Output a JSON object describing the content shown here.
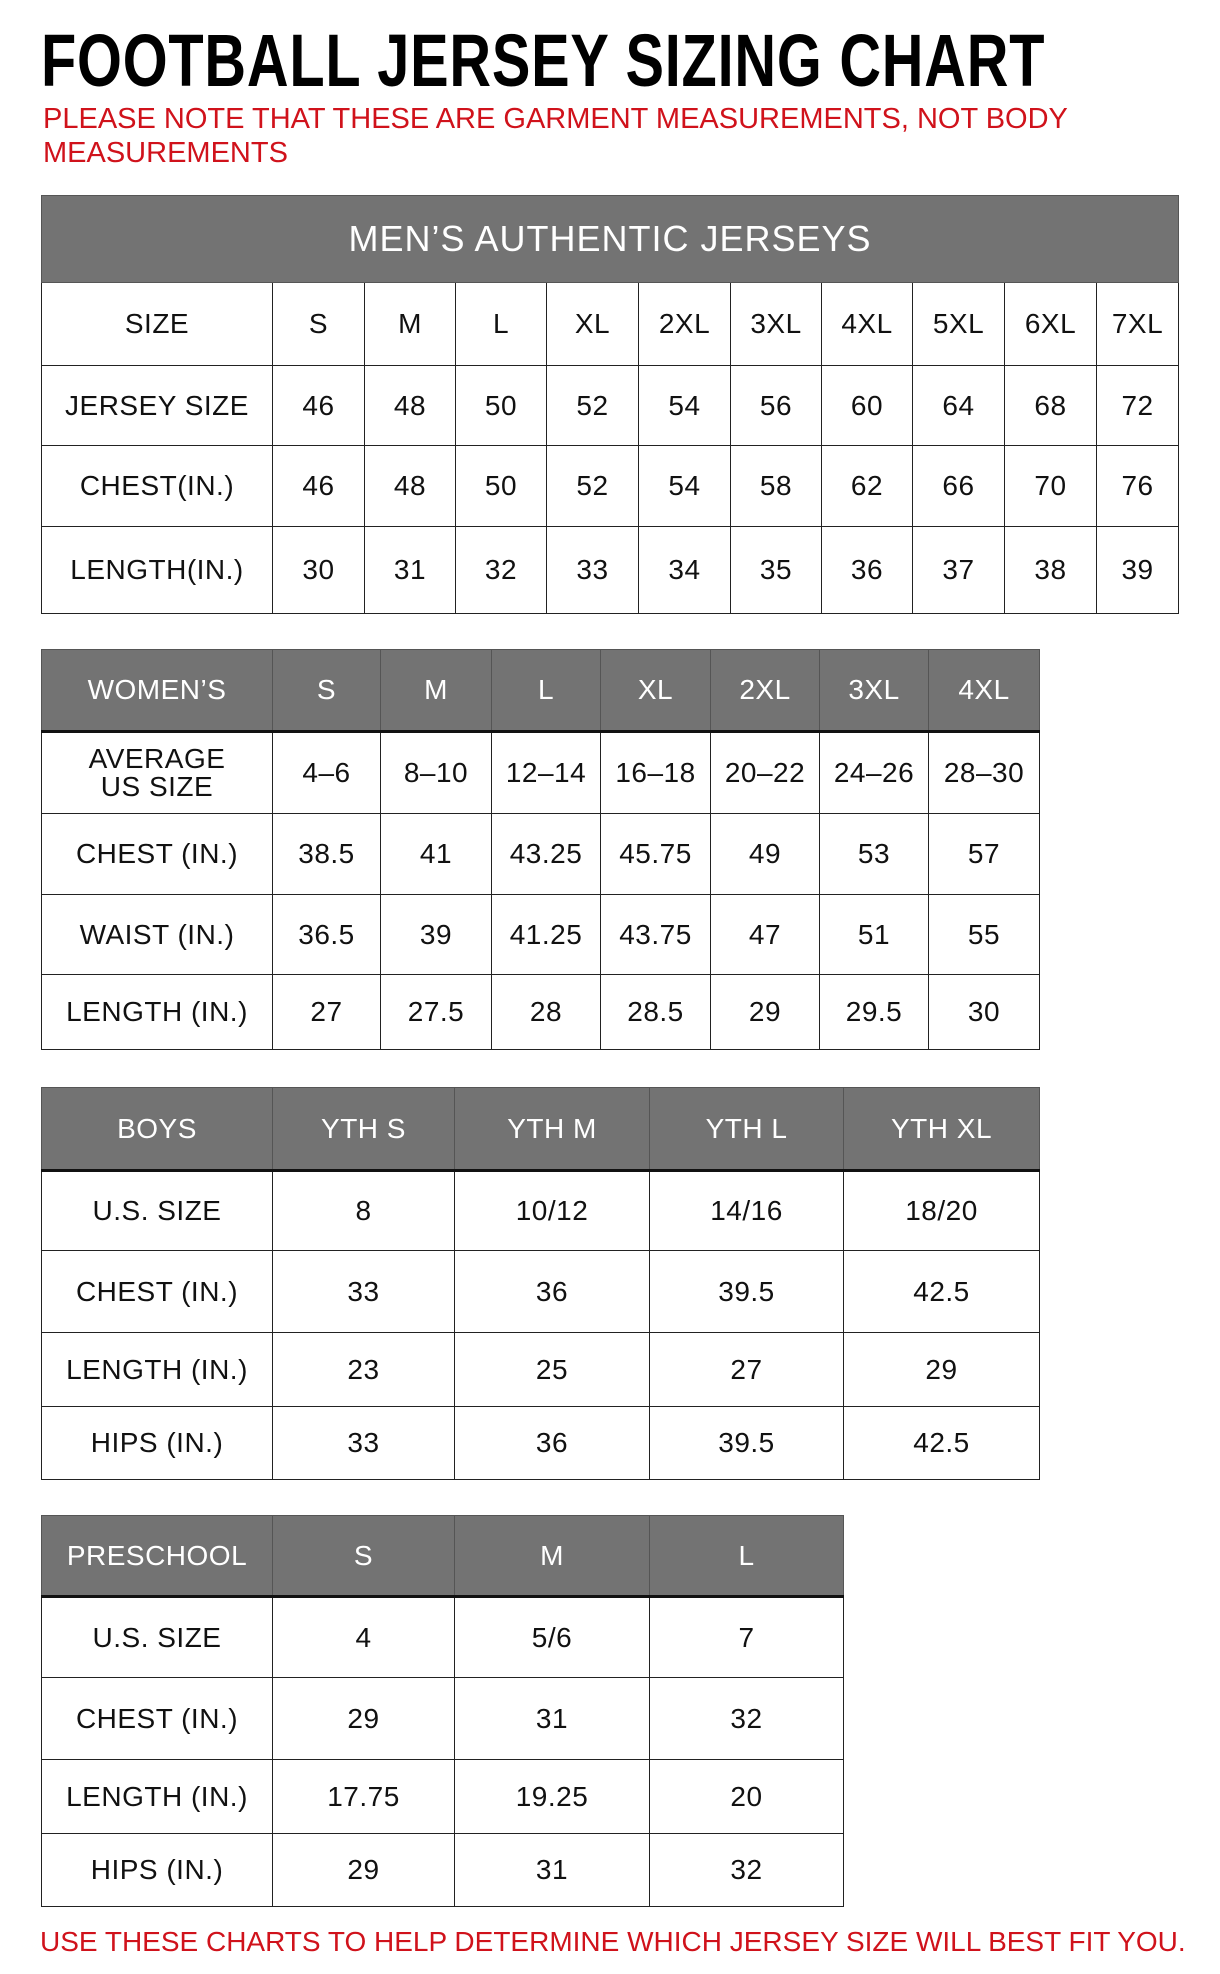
{
  "title": "FOOTBALL JERSEY SIZING CHART",
  "note": "PLEASE NOTE THAT THESE ARE GARMENT MEASUREMENTS, NOT BODY MEASUREMENTS",
  "footer": "USE THESE CHARTS TO HELP DETERMINE WHICH JERSEY SIZE WILL BEST FIT YOU.",
  "colors": {
    "header_gray": "#737373",
    "note_red": "#d0121b"
  },
  "tables": [
    {
      "caption": "MEN’S AUTHENTIC JERSEYS",
      "header": [
        "SIZE",
        "S",
        "M",
        "L",
        "XL",
        "2XL",
        "3XL",
        "4XL",
        "5XL",
        "6XL",
        "7XL"
      ],
      "header_style": "white",
      "rows": [
        [
          "JERSEY SIZE",
          "46",
          "48",
          "50",
          "52",
          "54",
          "56",
          "60",
          "64",
          "68",
          "72"
        ],
        [
          "CHEST(IN.)",
          "46",
          "48",
          "50",
          "52",
          "54",
          "58",
          "62",
          "66",
          "70",
          "76"
        ],
        [
          "LENGTH(IN.)",
          "30",
          "31",
          "32",
          "33",
          "34",
          "35",
          "36",
          "37",
          "38",
          "39"
        ]
      ]
    },
    {
      "header": [
        "WOMEN’S",
        "S",
        "M",
        "L",
        "XL",
        "2XL",
        "3XL",
        "4XL"
      ],
      "header_style": "gray",
      "rows": [
        [
          "AVERAGE\nUS SIZE",
          "4–6",
          "8–10",
          "12–14",
          "16–18",
          "20–22",
          "24–26",
          "28–30"
        ],
        [
          "CHEST (IN.)",
          "38.5",
          "41",
          "43.25",
          "45.75",
          "49",
          "53",
          "57"
        ],
        [
          "WAIST (IN.)",
          "36.5",
          "39",
          "41.25",
          "43.75",
          "47",
          "51",
          "55"
        ],
        [
          "LENGTH (IN.)",
          "27",
          "27.5",
          "28",
          "28.5",
          "29",
          "29.5",
          "30"
        ]
      ]
    },
    {
      "header": [
        "BOYS",
        "YTH S",
        "YTH M",
        "YTH L",
        "YTH XL"
      ],
      "header_style": "gray",
      "rows": [
        [
          "U.S. SIZE",
          "8",
          "10/12",
          "14/16",
          "18/20"
        ],
        [
          "CHEST (IN.)",
          "33",
          "36",
          "39.5",
          "42.5"
        ],
        [
          "LENGTH (IN.)",
          "23",
          "25",
          "27",
          "29"
        ],
        [
          "HIPS (IN.)",
          "33",
          "36",
          "39.5",
          "42.5"
        ]
      ]
    },
    {
      "header": [
        "PRESCHOOL",
        "S",
        "M",
        "L"
      ],
      "header_style": "gray",
      "rows": [
        [
          "U.S. SIZE",
          "4",
          "5/6",
          "7"
        ],
        [
          "CHEST (IN.)",
          "29",
          "31",
          "32"
        ],
        [
          "LENGTH (IN.)",
          "17.75",
          "19.25",
          "20"
        ],
        [
          "HIPS (IN.)",
          "29",
          "31",
          "32"
        ]
      ]
    }
  ]
}
